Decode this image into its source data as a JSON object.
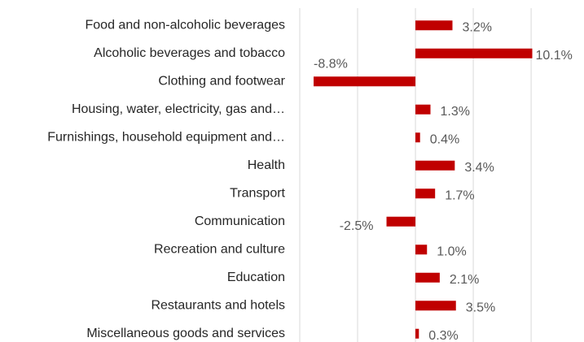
{
  "chart_data": {
    "type": "bar",
    "orientation": "horizontal",
    "categories": [
      "Food and non-alcoholic beverages",
      "Alcoholic beverages and tobacco",
      "Clothing and footwear",
      "Housing, water, electricity, gas and…",
      "Furnishings, household equipment and…",
      "Health",
      "Transport",
      "Communication",
      "Recreation and culture",
      "Education",
      "Restaurants and hotels",
      "Miscellaneous goods and services"
    ],
    "values": [
      3.2,
      10.1,
      -8.8,
      1.3,
      0.4,
      3.4,
      1.7,
      -2.5,
      1.0,
      2.1,
      3.5,
      0.3
    ],
    "value_labels": [
      "3.2%",
      "10.1%",
      "-8.8%",
      "1.3%",
      "0.4%",
      "3.4%",
      "1.7%",
      "-2.5%",
      "1.0%",
      "2.1%",
      "3.5%",
      "0.3%"
    ],
    "color": "#c00000",
    "xlim": [
      -10,
      14.5
    ],
    "xticks": [
      -10,
      -5,
      0,
      5,
      10
    ],
    "grid": true
  }
}
